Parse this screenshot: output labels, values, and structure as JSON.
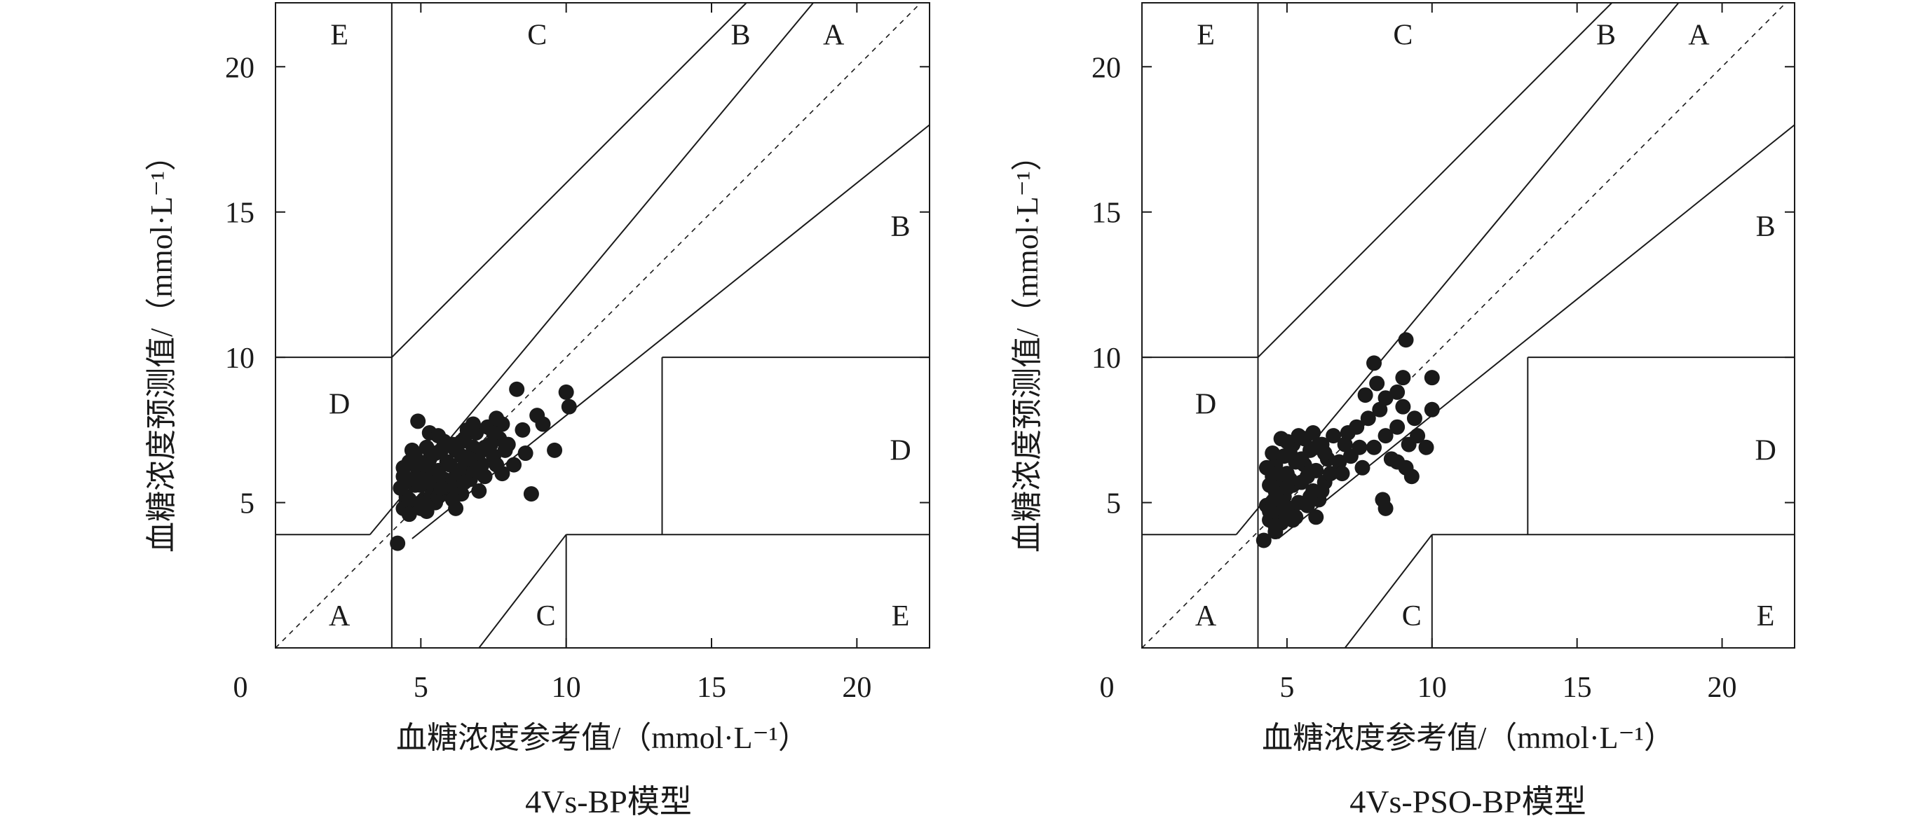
{
  "chart_data": [
    {
      "type": "scatter",
      "chart_kind": "Clarke error grid",
      "xlabel": "血糖浓度参考值/（mmol·L⁻¹）",
      "ylabel": "血糖浓度预测值/（mmol·L⁻¹）",
      "caption": "4Vs-BP模型",
      "xlim": [
        0,
        22.5
      ],
      "ylim": [
        0,
        22.2
      ],
      "xticks": [
        5,
        10,
        15,
        20
      ],
      "yticks": [
        5,
        10,
        15,
        20
      ],
      "origin_label": "0",
      "zone_labels": [
        {
          "text": "E",
          "x": 2.2,
          "y": 21.0
        },
        {
          "text": "C",
          "x": 9.0,
          "y": 21.0
        },
        {
          "text": "B",
          "x": 16.0,
          "y": 21.0
        },
        {
          "text": "A",
          "x": 19.2,
          "y": 21.0
        },
        {
          "text": "B",
          "x": 21.5,
          "y": 14.4
        },
        {
          "text": "D",
          "x": 2.2,
          "y": 8.3
        },
        {
          "text": "D",
          "x": 21.5,
          "y": 6.7
        },
        {
          "text": "A",
          "x": 2.2,
          "y": 1.0
        },
        {
          "text": "C",
          "x": 9.3,
          "y": 1.0
        },
        {
          "text": "E",
          "x": 21.5,
          "y": 1.0
        }
      ],
      "series": [
        {
          "marker_color": "#1a1a1a",
          "points": [
            [
              5.0,
              5.6
            ],
            [
              5.2,
              5.9
            ],
            [
              5.4,
              5.4
            ],
            [
              5.6,
              6.1
            ],
            [
              5.8,
              5.8
            ],
            [
              6.0,
              6.3
            ],
            [
              6.2,
              5.9
            ],
            [
              6.4,
              6.6
            ],
            [
              6.6,
              6.2
            ],
            [
              6.8,
              6.9
            ],
            [
              4.4,
              5.9
            ],
            [
              4.5,
              5.2
            ],
            [
              4.6,
              6.4
            ],
            [
              4.7,
              4.9
            ],
            [
              4.8,
              5.6
            ],
            [
              4.9,
              6.1
            ],
            [
              5.1,
              5.1
            ],
            [
              5.3,
              6.5
            ],
            [
              5.5,
              5.0
            ],
            [
              5.7,
              6.8
            ],
            [
              5.9,
              5.3
            ],
            [
              6.1,
              7.0
            ],
            [
              6.3,
              5.5
            ],
            [
              6.5,
              7.2
            ],
            [
              6.7,
              5.8
            ],
            [
              6.9,
              7.4
            ],
            [
              7.1,
              6.3
            ],
            [
              7.3,
              7.6
            ],
            [
              7.5,
              6.6
            ],
            [
              7.7,
              7.2
            ],
            [
              4.3,
              5.5
            ],
            [
              4.4,
              6.2
            ],
            [
              4.5,
              5.0
            ],
            [
              4.6,
              5.8
            ],
            [
              4.8,
              6.6
            ],
            [
              5.0,
              4.8
            ],
            [
              5.2,
              6.9
            ],
            [
              5.4,
              6.0
            ],
            [
              5.6,
              5.2
            ],
            [
              5.8,
              7.1
            ],
            [
              6.0,
              5.6
            ],
            [
              6.2,
              6.8
            ],
            [
              6.4,
              5.3
            ],
            [
              6.6,
              7.5
            ],
            [
              6.8,
              6.0
            ],
            [
              7.0,
              6.7
            ],
            [
              7.2,
              5.9
            ],
            [
              7.4,
              7.0
            ],
            [
              7.6,
              6.3
            ],
            [
              7.8,
              7.7
            ],
            [
              5.1,
              6.3
            ],
            [
              5.3,
              5.7
            ],
            [
              5.5,
              6.7
            ],
            [
              5.7,
              5.5
            ],
            [
              5.9,
              6.4
            ],
            [
              6.1,
              5.1
            ],
            [
              6.3,
              6.1
            ],
            [
              6.5,
              5.7
            ],
            [
              6.7,
              6.5
            ],
            [
              6.9,
              6.1
            ],
            [
              4.9,
              7.8
            ],
            [
              4.6,
              5.1
            ],
            [
              4.7,
              6.8
            ],
            [
              5.3,
              7.4
            ],
            [
              5.6,
              7.3
            ],
            [
              6.4,
              7.1
            ],
            [
              7.0,
              5.4
            ],
            [
              7.9,
              6.8
            ],
            [
              8.0,
              7.0
            ],
            [
              8.2,
              6.3
            ],
            [
              8.3,
              8.9
            ],
            [
              8.6,
              6.7
            ],
            [
              8.8,
              5.3
            ],
            [
              9.0,
              8.0
            ],
            [
              9.2,
              7.7
            ],
            [
              9.6,
              6.8
            ],
            [
              10.0,
              8.8
            ],
            [
              10.1,
              8.3
            ],
            [
              7.5,
              7.4
            ],
            [
              7.6,
              7.9
            ],
            [
              4.2,
              3.6
            ],
            [
              5.0,
              5.0
            ],
            [
              4.4,
              4.8
            ],
            [
              4.6,
              4.6
            ],
            [
              5.2,
              4.7
            ],
            [
              6.2,
              4.8
            ],
            [
              7.2,
              6.9
            ],
            [
              8.5,
              7.5
            ],
            [
              7.8,
              6.0
            ],
            [
              6.8,
              7.7
            ]
          ]
        }
      ]
    },
    {
      "type": "scatter",
      "chart_kind": "Clarke error grid",
      "xlabel": "血糖浓度参考值/（mmol·L⁻¹）",
      "ylabel": "血糖浓度预测值/（mmol·L⁻¹）",
      "caption": "4Vs-PSO-BP模型",
      "xlim": [
        0,
        22.5
      ],
      "ylim": [
        0,
        22.2
      ],
      "xticks": [
        5,
        10,
        15,
        20
      ],
      "yticks": [
        5,
        10,
        15,
        20
      ],
      "origin_label": "0",
      "zone_labels": [
        {
          "text": "E",
          "x": 2.2,
          "y": 21.0
        },
        {
          "text": "C",
          "x": 9.0,
          "y": 21.0
        },
        {
          "text": "B",
          "x": 16.0,
          "y": 21.0
        },
        {
          "text": "A",
          "x": 19.2,
          "y": 21.0
        },
        {
          "text": "B",
          "x": 21.5,
          "y": 14.4
        },
        {
          "text": "D",
          "x": 2.2,
          "y": 8.3
        },
        {
          "text": "D",
          "x": 21.5,
          "y": 6.7
        },
        {
          "text": "A",
          "x": 2.2,
          "y": 1.0
        },
        {
          "text": "C",
          "x": 9.3,
          "y": 1.0
        },
        {
          "text": "E",
          "x": 21.5,
          "y": 1.0
        }
      ],
      "series": [
        {
          "marker_color": "#1a1a1a",
          "points": [
            [
              4.5,
              5.0
            ],
            [
              4.6,
              5.4
            ],
            [
              4.7,
              4.6
            ],
            [
              4.8,
              5.8
            ],
            [
              4.9,
              5.2
            ],
            [
              5.0,
              6.0
            ],
            [
              5.1,
              4.8
            ],
            [
              5.2,
              5.6
            ],
            [
              5.3,
              6.4
            ],
            [
              5.4,
              5.0
            ],
            [
              4.4,
              4.4
            ],
            [
              4.5,
              5.9
            ],
            [
              4.6,
              6.3
            ],
            [
              4.7,
              5.3
            ],
            [
              4.8,
              4.3
            ],
            [
              4.9,
              6.6
            ],
            [
              5.0,
              4.6
            ],
            [
              5.1,
              5.8
            ],
            [
              5.2,
              7.0
            ],
            [
              5.3,
              4.5
            ],
            [
              5.5,
              5.7
            ],
            [
              5.6,
              6.3
            ],
            [
              5.7,
              4.9
            ],
            [
              5.8,
              6.8
            ],
            [
              5.9,
              5.4
            ],
            [
              6.0,
              6.1
            ],
            [
              6.1,
              5.1
            ],
            [
              6.2,
              7.0
            ],
            [
              6.3,
              5.7
            ],
            [
              6.4,
              6.5
            ],
            [
              4.3,
              4.9
            ],
            [
              4.4,
              5.6
            ],
            [
              4.5,
              6.7
            ],
            [
              4.6,
              4.2
            ],
            [
              4.7,
              6.0
            ],
            [
              4.8,
              7.2
            ],
            [
              4.9,
              4.9
            ],
            [
              5.0,
              5.5
            ],
            [
              5.1,
              6.7
            ],
            [
              5.2,
              4.4
            ],
            [
              5.4,
              7.3
            ],
            [
              5.6,
              7.2
            ],
            [
              5.8,
              5.2
            ],
            [
              6.0,
              6.9
            ],
            [
              6.2,
              5.4
            ],
            [
              6.5,
              6.0
            ],
            [
              6.6,
              7.3
            ],
            [
              6.8,
              6.4
            ],
            [
              7.0,
              7.0
            ],
            [
              7.2,
              6.6
            ],
            [
              7.4,
              7.6
            ],
            [
              7.6,
              6.2
            ],
            [
              7.8,
              7.9
            ],
            [
              8.0,
              6.9
            ],
            [
              8.2,
              8.2
            ],
            [
              8.4,
              7.3
            ],
            [
              8.6,
              6.5
            ],
            [
              8.8,
              7.6
            ],
            [
              9.0,
              8.3
            ],
            [
              9.2,
              7.0
            ],
            [
              8.0,
              9.8
            ],
            [
              8.1,
              9.1
            ],
            [
              9.1,
              10.6
            ],
            [
              9.0,
              9.3
            ],
            [
              10.0,
              9.3
            ],
            [
              10.0,
              8.2
            ],
            [
              8.4,
              8.6
            ],
            [
              7.7,
              8.7
            ],
            [
              8.8,
              8.8
            ],
            [
              9.4,
              7.9
            ],
            [
              9.5,
              7.3
            ],
            [
              9.8,
              6.9
            ],
            [
              9.3,
              5.9
            ],
            [
              8.3,
              5.1
            ],
            [
              8.4,
              4.8
            ],
            [
              9.1,
              6.2
            ],
            [
              8.8,
              6.4
            ],
            [
              6.0,
              4.5
            ],
            [
              4.2,
              3.7
            ],
            [
              4.6,
              4.0
            ],
            [
              5.5,
              6.5
            ],
            [
              5.7,
              5.9
            ],
            [
              6.3,
              6.7
            ],
            [
              6.9,
              6.0
            ],
            [
              7.1,
              7.4
            ],
            [
              7.5,
              6.9
            ],
            [
              4.3,
              6.2
            ],
            [
              5.9,
              7.4
            ],
            [
              5.0,
              7.1
            ],
            [
              4.4,
              4.7
            ]
          ]
        }
      ]
    }
  ]
}
